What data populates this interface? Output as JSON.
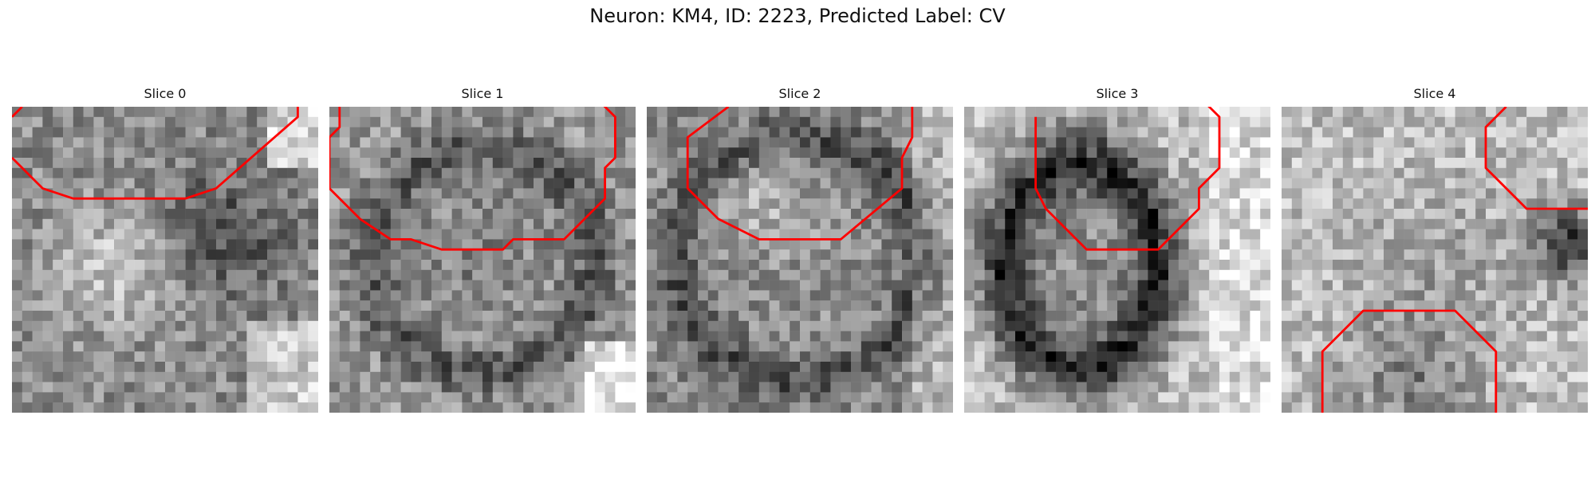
{
  "figure": {
    "title": "Neuron: KM4, ID: 2223, Predicted Label: CV",
    "contour_color": "#ff0000"
  },
  "panels": [
    {
      "title": "Slice 0",
      "seed": 11,
      "bias": "blob_right_dark",
      "contours": [
        [
          [
            0,
            1
          ],
          [
            1,
            0
          ]
        ],
        [
          [
            0,
            5
          ],
          [
            1,
            6
          ],
          [
            2,
            7
          ],
          [
            3,
            8
          ],
          [
            6,
            9
          ],
          [
            8,
            9
          ],
          [
            17,
            9
          ],
          [
            20,
            8
          ],
          [
            28,
            1
          ],
          [
            28,
            -1
          ],
          [
            25,
            -2
          ]
        ]
      ]
    },
    {
      "title": "Slice 1",
      "seed": 23,
      "bias": "ring_center",
      "contours": [
        [
          [
            1,
            0
          ],
          [
            1,
            2
          ],
          [
            0,
            3
          ],
          [
            0,
            8
          ],
          [
            3,
            11
          ],
          [
            6,
            13
          ],
          [
            8,
            13
          ],
          [
            11,
            14
          ],
          [
            17,
            14
          ],
          [
            18,
            13
          ],
          [
            23,
            13
          ],
          [
            27,
            9
          ],
          [
            27,
            6
          ],
          [
            28,
            5
          ],
          [
            28,
            1
          ],
          [
            26,
            -1
          ]
        ]
      ]
    },
    {
      "title": "Slice 2",
      "seed": 37,
      "bias": "dark_ring",
      "contours": [
        [
          [
            8,
            0
          ],
          [
            4,
            3
          ],
          [
            4,
            8
          ],
          [
            6,
            10
          ],
          [
            7,
            11
          ],
          [
            11,
            13
          ],
          [
            19,
            13
          ],
          [
            25,
            8
          ],
          [
            25,
            5
          ],
          [
            26,
            3
          ],
          [
            26,
            -2
          ],
          [
            22,
            -5
          ]
        ]
      ]
    },
    {
      "title": "Slice 3",
      "seed": 51,
      "bias": "dark_oval",
      "contours": [
        [
          [
            7,
            1
          ],
          [
            7,
            8
          ],
          [
            8,
            10
          ],
          [
            12,
            14
          ],
          [
            19,
            14
          ],
          [
            23,
            10
          ],
          [
            23,
            8
          ],
          [
            25,
            6
          ],
          [
            25,
            1
          ],
          [
            23,
            -1
          ]
        ]
      ]
    },
    {
      "title": "Slice 4",
      "seed": 67,
      "bias": "light_dark_right",
      "contours": [
        [
          [
            22,
            0
          ],
          [
            20,
            2
          ],
          [
            20,
            6
          ],
          [
            24,
            10
          ],
          [
            31,
            10
          ]
        ],
        [
          [
            4,
            30
          ],
          [
            4,
            24
          ],
          [
            8,
            20
          ],
          [
            17,
            20
          ],
          [
            21,
            24
          ],
          [
            21,
            30
          ]
        ]
      ]
    }
  ]
}
